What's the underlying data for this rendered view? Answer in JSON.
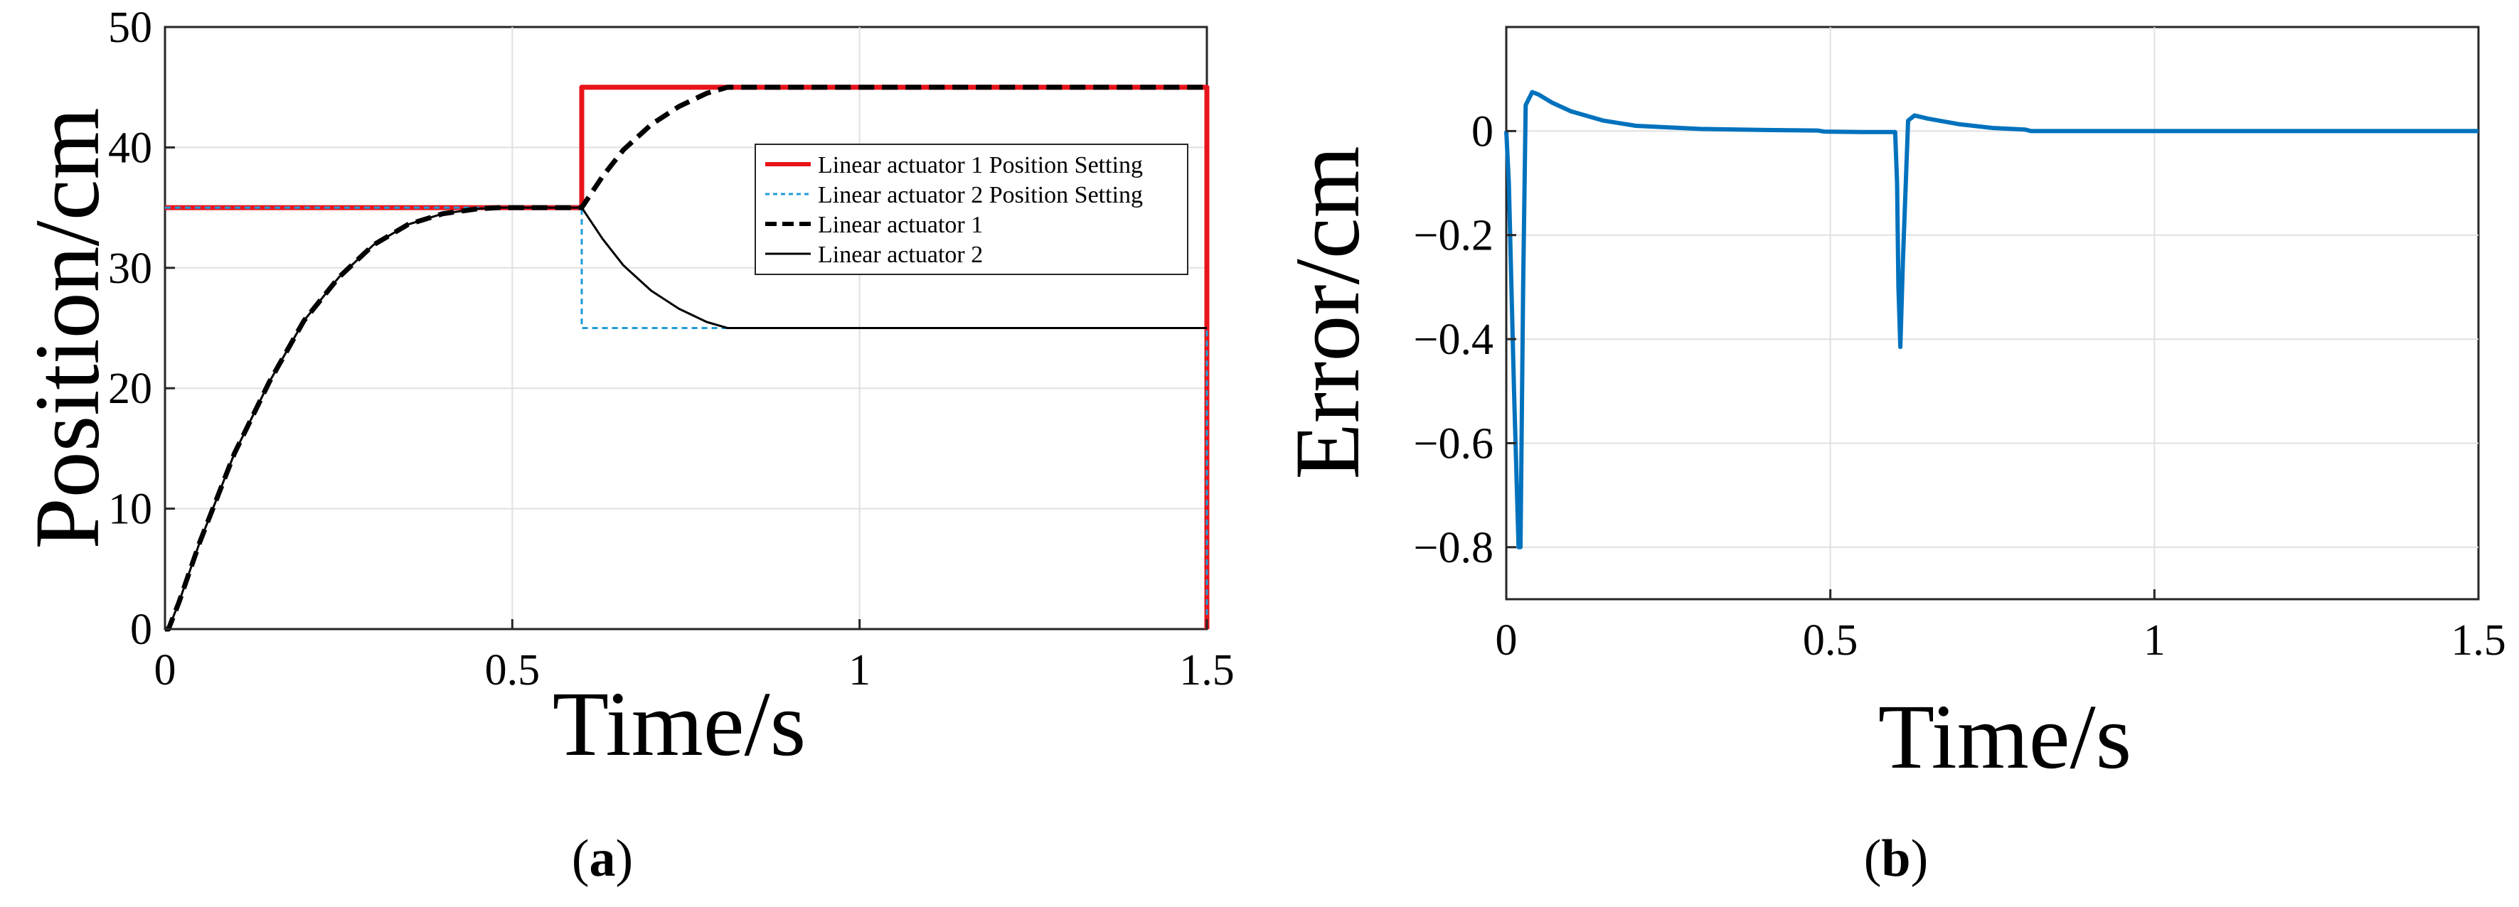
{
  "chart_data": [
    {
      "type": "line",
      "panel_label": "a",
      "xlabel": "Time/s",
      "ylabel": "Position/cm",
      "xlim": [
        0,
        1.5
      ],
      "ylim": [
        0,
        50
      ],
      "xticks": [
        0,
        0.5,
        1,
        1.5
      ],
      "yticks": [
        0,
        10,
        20,
        30,
        40,
        50
      ],
      "xtick_labels": [
        "0",
        "0.5",
        "1",
        "1.5"
      ],
      "ytick_labels": [
        "0",
        "10",
        "20",
        "30",
        "40",
        "50"
      ],
      "grid": true,
      "legend_position": "right",
      "series": [
        {
          "name": "Linear actuator 1 Position Setting",
          "color": "#e8141b",
          "style": "solid-thick",
          "x": [
            0,
            0.6,
            0.6,
            1.5,
            1.5
          ],
          "y": [
            35,
            35,
            45,
            45,
            0
          ]
        },
        {
          "name": "Linear actuator 2 Position Setting",
          "color": "#1f9bd7",
          "style": "dotted",
          "x": [
            0,
            0.6,
            0.6,
            1.5,
            1.5
          ],
          "y": [
            35,
            35,
            25,
            25,
            0
          ]
        },
        {
          "name": "Linear actuator 1",
          "color": "#000000",
          "style": "dashed-thick",
          "x": [
            0,
            0.005,
            0.02,
            0.05,
            0.1,
            0.15,
            0.2,
            0.25,
            0.3,
            0.35,
            0.4,
            0.45,
            0.48,
            0.5,
            0.6,
            0.63,
            0.66,
            0.7,
            0.74,
            0.78,
            0.81,
            0.85,
            1.0,
            1.5
          ],
          "y": [
            0,
            0,
            2.2,
            7.2,
            14.6,
            20.5,
            25.6,
            29.2,
            31.9,
            33.6,
            34.5,
            34.9,
            35,
            35,
            35,
            37.6,
            39.8,
            41.9,
            43.4,
            44.5,
            45,
            45,
            45,
            45
          ]
        },
        {
          "name": "Linear actuator 2",
          "color": "#000000",
          "style": "solid-thin",
          "x": [
            0,
            0.005,
            0.02,
            0.05,
            0.1,
            0.15,
            0.2,
            0.25,
            0.3,
            0.35,
            0.4,
            0.45,
            0.48,
            0.5,
            0.6,
            0.63,
            0.66,
            0.7,
            0.74,
            0.78,
            0.81,
            0.85,
            1.0,
            1.5
          ],
          "y": [
            0,
            0,
            2.2,
            7.2,
            14.6,
            20.5,
            25.6,
            29.2,
            31.9,
            33.6,
            34.5,
            34.9,
            35,
            35,
            35,
            32.4,
            30.2,
            28.1,
            26.6,
            25.5,
            25,
            25,
            25,
            25
          ]
        }
      ]
    },
    {
      "type": "line",
      "panel_label": "b",
      "xlabel": "Time/s",
      "ylabel": "Error/cm",
      "xlim": [
        0,
        1.5
      ],
      "ylim": [
        -0.9,
        0.2
      ],
      "xticks": [
        0,
        0.5,
        1,
        1.5
      ],
      "yticks": [
        0,
        -0.2,
        -0.4,
        -0.6,
        -0.8
      ],
      "xtick_labels": [
        "0",
        "0.5",
        "1",
        "1.5"
      ],
      "ytick_labels": [
        "0",
        "−0.2",
        "−0.4",
        "−0.6",
        "−0.8"
      ],
      "grid": true,
      "series": [
        {
          "color": "#0072bd",
          "x": [
            0,
            0.004,
            0.012,
            0.019,
            0.022,
            0.026,
            0.03,
            0.04,
            0.05,
            0.07,
            0.1,
            0.15,
            0.2,
            0.3,
            0.4,
            0.48,
            0.49,
            0.55,
            0.6,
            0.603,
            0.605,
            0.608,
            0.612,
            0.62,
            0.63,
            0.65,
            0.7,
            0.75,
            0.8,
            0.81,
            1.0,
            1.5
          ],
          "y": [
            0,
            -0.1,
            -0.5,
            -0.8,
            -0.8,
            -0.3,
            0.05,
            0.075,
            0.07,
            0.055,
            0.038,
            0.02,
            0.01,
            0.004,
            0.002,
            0.001,
            -0.001,
            -0.002,
            -0.002,
            -0.1,
            -0.3,
            -0.415,
            -0.25,
            0.02,
            0.03,
            0.024,
            0.013,
            0.006,
            0.003,
            0.0,
            0.0,
            0.0
          ]
        }
      ]
    }
  ]
}
